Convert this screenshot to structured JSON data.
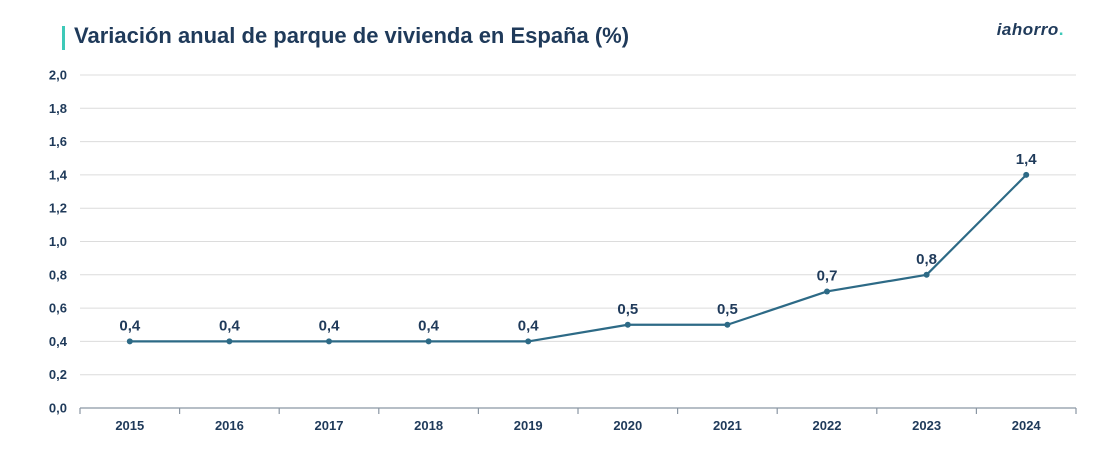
{
  "chart_data": {
    "type": "line",
    "title": "Variación anual de parque de vivienda en España (%)",
    "categories": [
      "2015",
      "2016",
      "2017",
      "2018",
      "2019",
      "2020",
      "2021",
      "2022",
      "2023",
      "2024"
    ],
    "values": [
      0.4,
      0.4,
      0.4,
      0.4,
      0.4,
      0.5,
      0.5,
      0.7,
      0.8,
      1.4
    ],
    "data_labels": [
      "0,4",
      "0,4",
      "0,4",
      "0,4",
      "0,4",
      "0,5",
      "0,5",
      "0,7",
      "0,8",
      "1,4"
    ],
    "y_ticks": [
      "0,0",
      "0,2",
      "0,4",
      "0,6",
      "0,8",
      "1,0",
      "1,2",
      "1,4",
      "1,6",
      "1,8",
      "2,0"
    ],
    "ylim": [
      0,
      2.0
    ],
    "xlabel": "",
    "ylabel": "",
    "grid": true,
    "legend": "none",
    "line_color": "#2d6a86",
    "accent_color": "#3ec9b8"
  },
  "brand": {
    "text": "iahorro",
    "dot": "."
  }
}
